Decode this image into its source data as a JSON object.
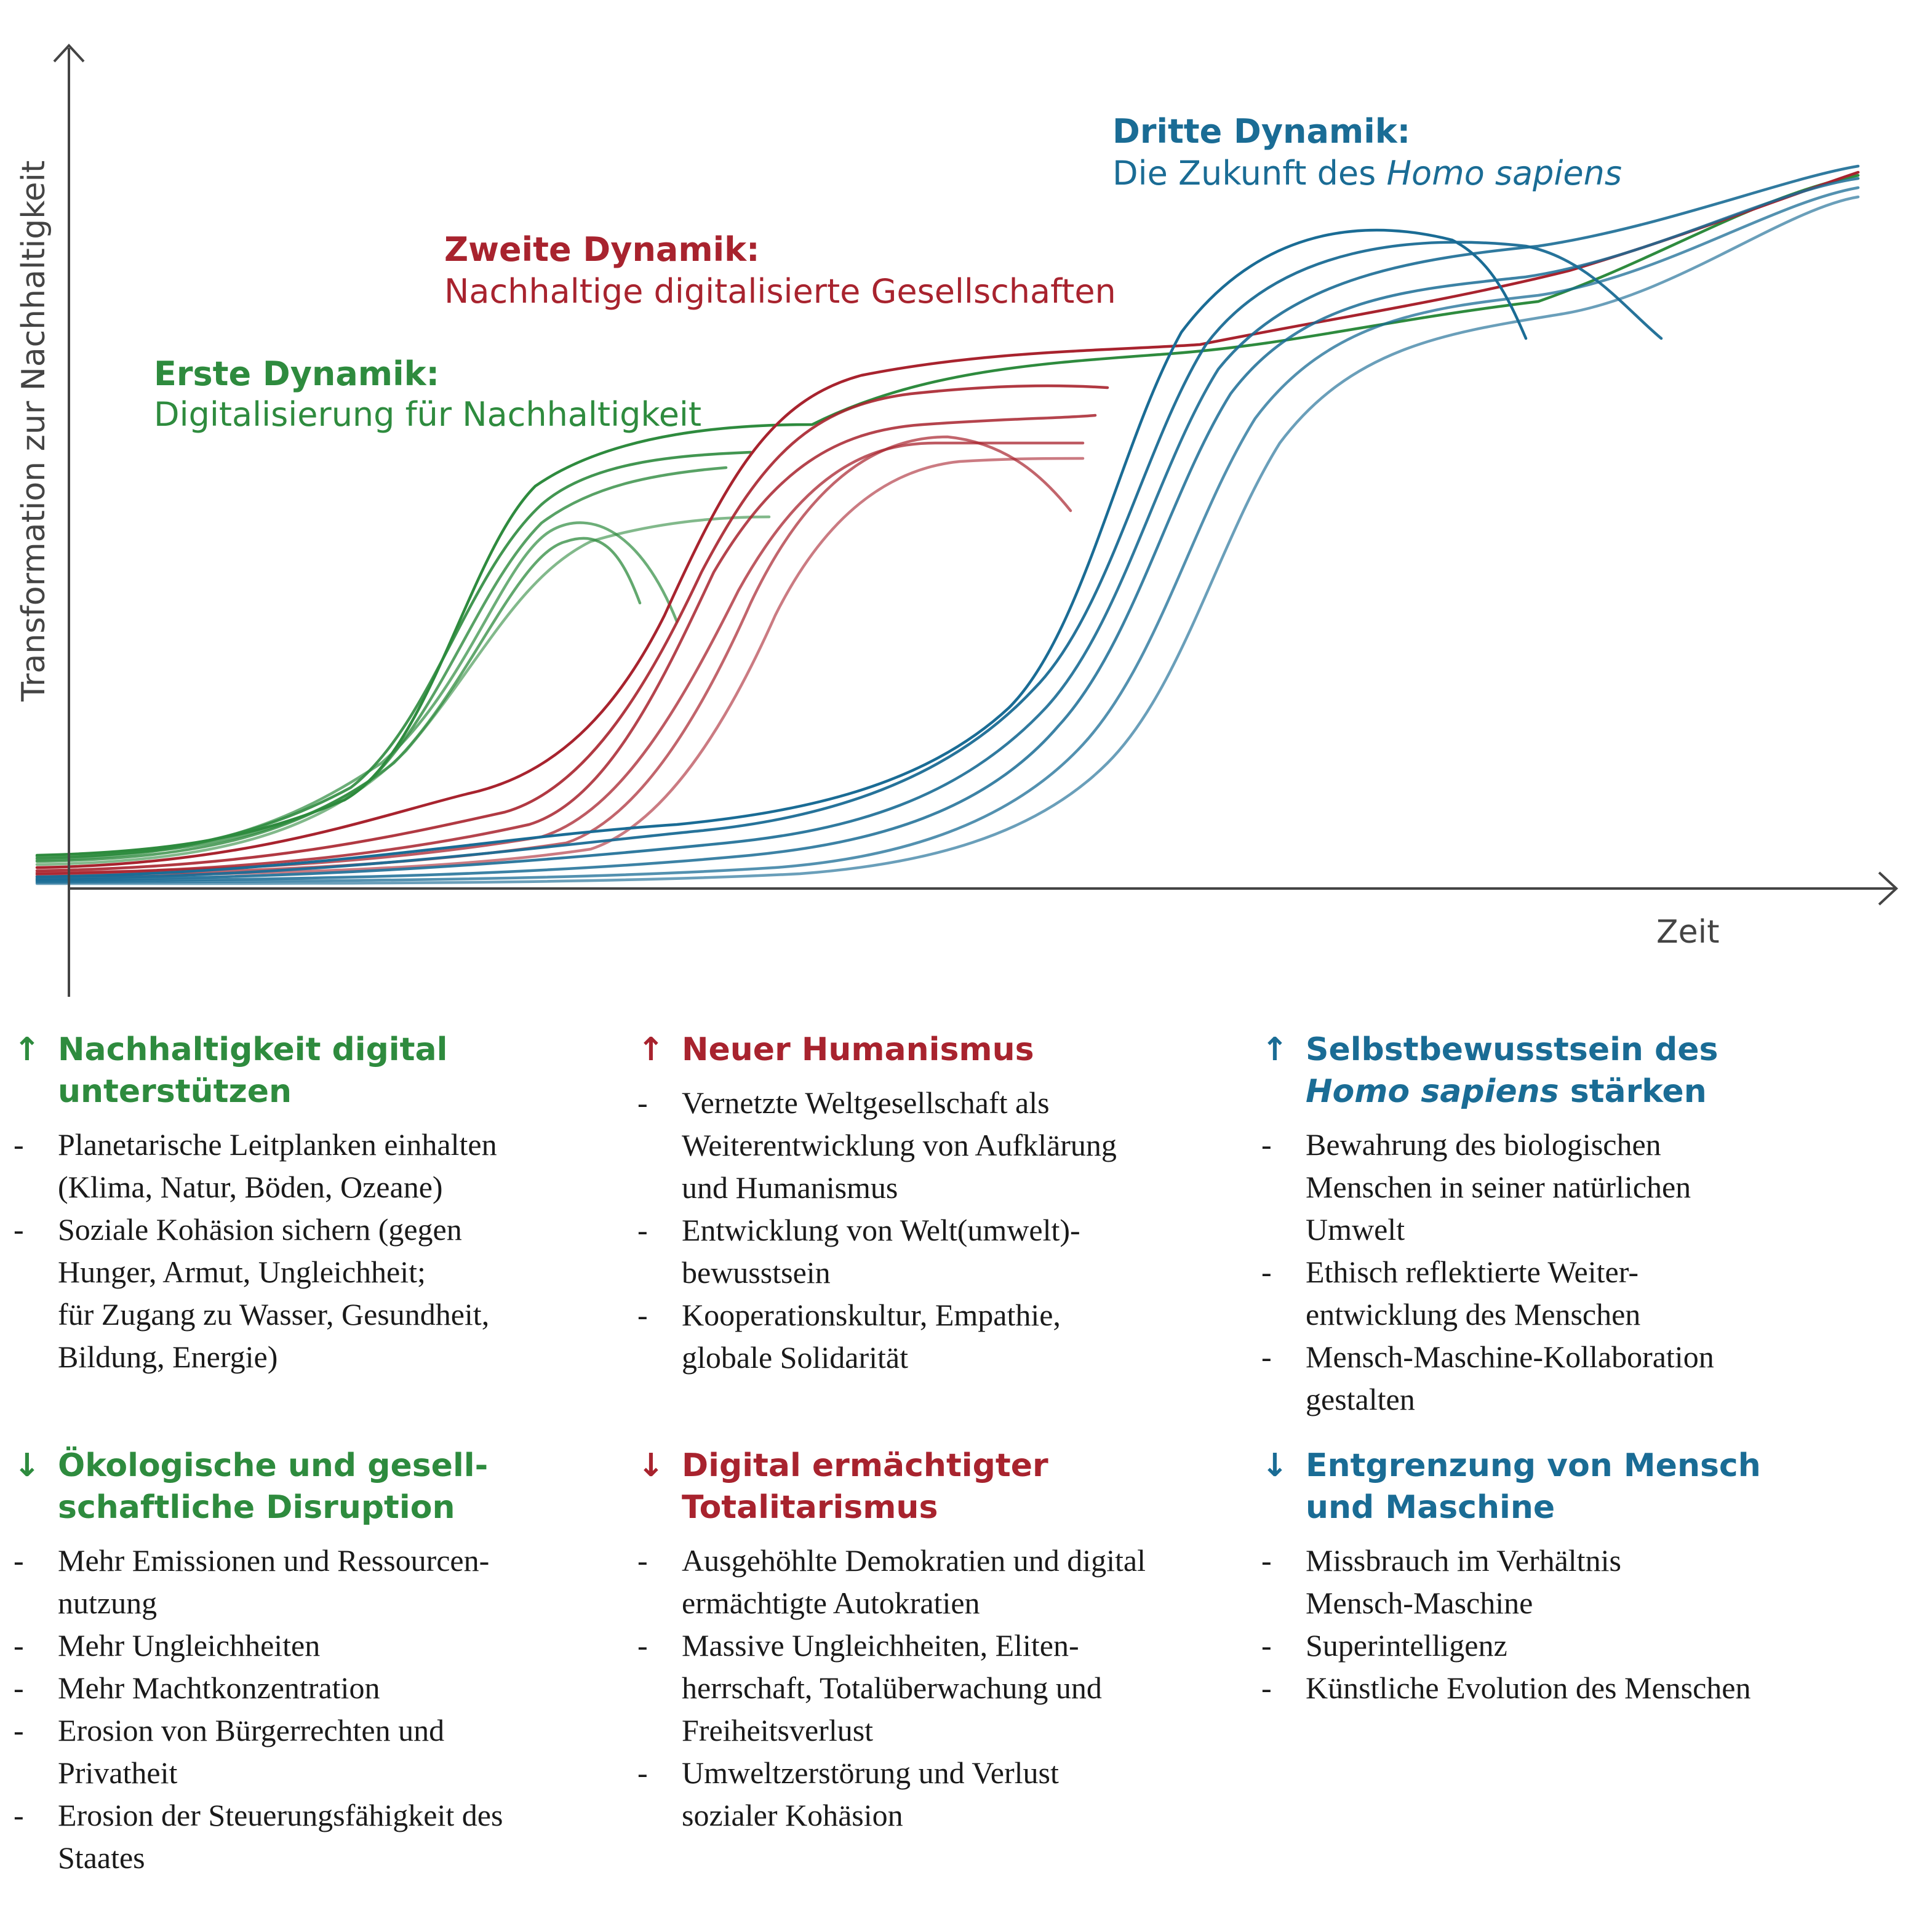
{
  "colors": {
    "green": "#2e8b3e",
    "red": "#a8232e",
    "blue": "#1a6c95",
    "axis": "#444444"
  },
  "diagram": {
    "y_axis_label": "Transformation zur Nachhaltigkeit",
    "x_axis_label": "Zeit",
    "dynamics": [
      {
        "heading": "Erste Dynamik:",
        "subtitle": "Digitalisierung für Nachhaltigkeit",
        "color": "green"
      },
      {
        "heading": "Zweite Dynamik:",
        "subtitle": "Nachhaltige digitalisierte Gesellschaften",
        "color": "red"
      },
      {
        "heading": "Dritte Dynamik:",
        "subtitle_prefix": "Die Zukunft des ",
        "subtitle_italic": "Homo sapiens",
        "color": "blue"
      }
    ]
  },
  "columns": [
    {
      "color": "green",
      "up": {
        "arrow": "↑",
        "title_lines": [
          "Nachhaltigkeit digital",
          "unterstützen"
        ],
        "items": [
          [
            "Planetarische Leitplanken einhalten",
            "(Klima, Natur, Böden, Ozeane)"
          ],
          [
            "Soziale Kohäsion sichern (gegen",
            "Hunger, Armut, Ungleichheit;",
            "für Zugang zu Wasser, Gesundheit,",
            "Bildung, Energie)"
          ]
        ]
      },
      "down": {
        "arrow": "↓",
        "title_lines": [
          "Ökologische und gesell-",
          "schaftliche Disruption"
        ],
        "items": [
          [
            "Mehr Emissionen und Ressourcen-",
            "nutzung"
          ],
          [
            "Mehr Ungleichheiten"
          ],
          [
            "Mehr Machtkonzentration"
          ],
          [
            "Erosion von Bürgerrechten und",
            "Privatheit"
          ],
          [
            "Erosion der Steuerungsfähigkeit des",
            "Staates"
          ]
        ]
      }
    },
    {
      "color": "red",
      "up": {
        "arrow": "↑",
        "title_lines": [
          "Neuer Humanismus"
        ],
        "items": [
          [
            "Vernetzte Weltgesellschaft als",
            "Weiterentwicklung von Aufklärung",
            "und Humanismus"
          ],
          [
            "Entwicklung von Welt(umwelt)-",
            "bewusstsein"
          ],
          [
            "Kooperationskultur, Empathie,",
            "globale Solidarität"
          ]
        ]
      },
      "down": {
        "arrow": "↓",
        "title_lines": [
          "Digital ermächtigter",
          "Totalitarismus"
        ],
        "items": [
          [
            "Ausgehöhlte Demokratien und digital",
            "ermächtigte Autokratien"
          ],
          [
            "Massive Ungleichheiten, Eliten-",
            "herrschaft, Totalüberwachung und",
            "Freiheitsverlust"
          ],
          [
            "Umweltzerstörung und Verlust",
            "sozialer Kohäsion"
          ]
        ]
      }
    },
    {
      "color": "blue",
      "up": {
        "arrow": "↑",
        "title_line1": "Selbstbewusstsein des",
        "title_line2_italic": "Homo sapiens",
        "title_line2_rest": " stärken",
        "items": [
          [
            "Bewahrung des biologischen",
            "Menschen in seiner natürlichen",
            "Umwelt"
          ],
          [
            "Ethisch reflektierte Weiter-",
            "entwicklung des Menschen"
          ],
          [
            "Mensch-Maschine-Kollaboration",
            "gestalten"
          ]
        ]
      },
      "down": {
        "arrow": "↓",
        "title_lines": [
          "Entgrenzung von Mensch",
          "und Maschine"
        ],
        "items": [
          [
            "Missbrauch im Verhältnis",
            "Mensch-Maschine"
          ],
          [
            "Superintelligenz"
          ],
          [
            "Künstliche Evolution des Menschen"
          ]
        ]
      }
    }
  ]
}
